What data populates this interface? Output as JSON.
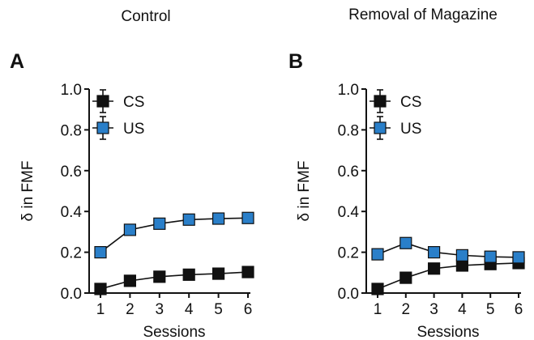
{
  "chart_data": [
    {
      "type": "line",
      "panel": "A",
      "title": "Control",
      "xlabel": "Sessions",
      "ylabel": "δ in FMF",
      "x": [
        1,
        2,
        3,
        4,
        5,
        6
      ],
      "xticks": [
        "1",
        "2",
        "3",
        "4",
        "5",
        "6"
      ],
      "ylim": [
        0,
        1.0
      ],
      "yticks": [
        "0.0",
        "0.2",
        "0.4",
        "0.6",
        "0.8",
        "1.0"
      ],
      "grid": false,
      "legend": "top-left",
      "series": [
        {
          "name": "CS",
          "color": "#111111",
          "values": [
            0.02,
            0.06,
            0.08,
            0.09,
            0.095,
            0.103
          ]
        },
        {
          "name": "US",
          "color": "#2a7fc9",
          "values": [
            0.2,
            0.31,
            0.34,
            0.36,
            0.365,
            0.368
          ]
        }
      ]
    },
    {
      "type": "line",
      "panel": "B",
      "title": "Removal of Magazine",
      "xlabel": "Sessions",
      "ylabel": "δ in FMF",
      "x": [
        1,
        2,
        3,
        4,
        5,
        6
      ],
      "xticks": [
        "1",
        "2",
        "3",
        "4",
        "5",
        "6"
      ],
      "ylim": [
        0,
        1.0
      ],
      "yticks": [
        "0.0",
        "0.2",
        "0.4",
        "0.6",
        "0.8",
        "1.0"
      ],
      "grid": false,
      "legend": "top-left",
      "series": [
        {
          "name": "CS",
          "color": "#111111",
          "values": [
            0.02,
            0.075,
            0.12,
            0.135,
            0.142,
            0.147
          ]
        },
        {
          "name": "US",
          "color": "#2a7fc9",
          "values": [
            0.19,
            0.245,
            0.2,
            0.185,
            0.178,
            0.175
          ]
        }
      ]
    }
  ]
}
